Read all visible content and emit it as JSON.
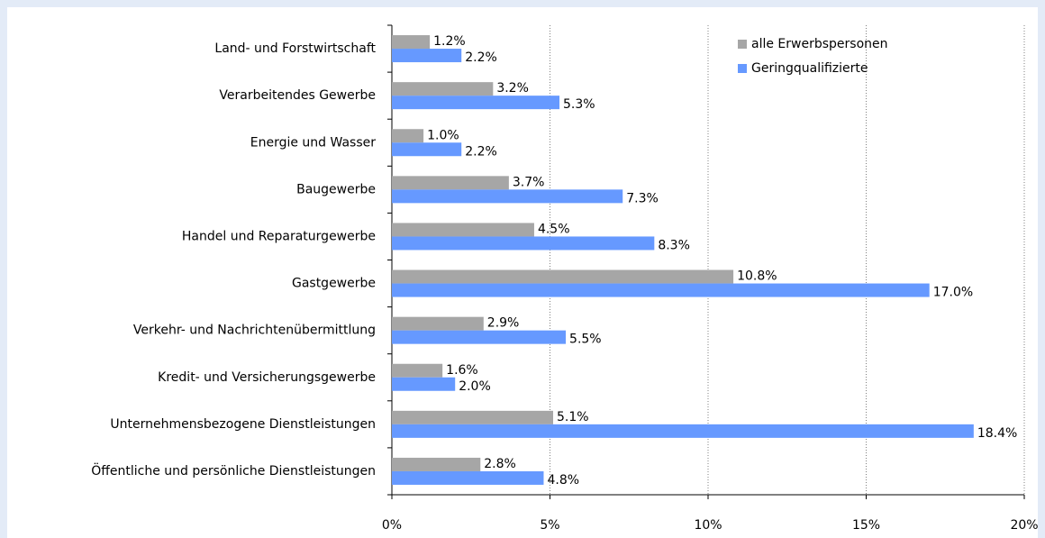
{
  "chart_data": {
    "type": "hbar",
    "categories": [
      "Land- und Forstwirtschaft",
      "Verarbeitendes Gewerbe",
      "Energie und Wasser",
      "Baugewerbe",
      "Handel und Reparaturgewerbe",
      "Gastgewerbe",
      "Verkehr- und Nachrichtenübermittlung",
      "Kredit- und Versicherungsgewerbe",
      "Unternehmensbezogene Dienstleistungen",
      "Öffentliche und persönliche Dienstleistungen"
    ],
    "series": [
      {
        "name": "alle Erwerbspersonen",
        "color": "#a6a6a6",
        "values": [
          1.2,
          3.2,
          1.0,
          3.7,
          4.5,
          10.8,
          2.9,
          1.6,
          5.1,
          2.8
        ],
        "value_labels": [
          "1.2%",
          "3.2%",
          "1.0%",
          "3.7%",
          "4.5%",
          "10.8%",
          "2.9%",
          "1.6%",
          "5.1%",
          "2.8%"
        ]
      },
      {
        "name": "Geringqualifizierte",
        "color": "#6699ff",
        "values": [
          2.2,
          5.3,
          2.2,
          7.3,
          8.3,
          17.0,
          5.5,
          2.0,
          18.4,
          4.8
        ],
        "value_labels": [
          "2.2%",
          "5.3%",
          "2.2%",
          "7.3%",
          "8.3%",
          "17.0%",
          "5.5%",
          "2.0%",
          "18.4%",
          "4.8%"
        ]
      }
    ],
    "xlim": [
      0,
      20
    ],
    "xticks": [
      {
        "value": 0,
        "label": "0%"
      },
      {
        "value": 5,
        "label": "5%"
      },
      {
        "value": 10,
        "label": "10%"
      },
      {
        "value": 15,
        "label": "15%"
      },
      {
        "value": 20,
        "label": "20%"
      }
    ],
    "grid": true,
    "legend": "top-right"
  }
}
